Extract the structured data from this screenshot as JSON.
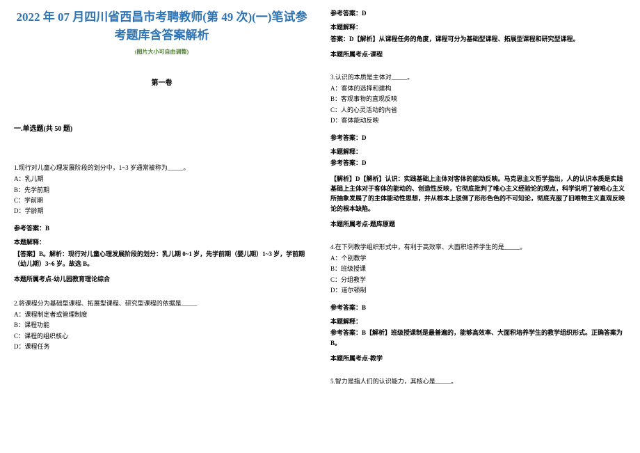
{
  "doc": {
    "title": "2022 年 07 月四川省西昌市考聘教师(第 49 次)(一)笔试参考题库含答案解析",
    "subtitle": "(图片大小可自由调整)",
    "section_label": "第一卷",
    "section_header": "一.单选题(共 50 题)"
  },
  "col_left": {
    "q1": {
      "text": "1.现行对儿童心理发展阶段的划分中，1~3 岁通常被称为_____。",
      "optA": "A：乳儿期",
      "optB": "B：先学前期",
      "optC": "C：学前期",
      "optD": "D：学龄期",
      "answer": "参考答案：B",
      "explain_label": "本题解释：",
      "explain_text": "【答案】B。解析：现行对儿童心理发展阶段的划分：乳儿期 0~1 岁，先学前期（婴儿期）1~3 岁，学前期（幼儿期）3~6 岁。故选 B。",
      "topic": "本题所属考点-幼儿园教育理论综合"
    },
    "q2": {
      "text": "2.将课程分为基础型课程、拓展型课程、研究型课程的依据是_____",
      "optA": "A：课程制定者或管理制度",
      "optB": "B：课程功能",
      "optC": "C：课程的组织核心",
      "optD": "D：课程任务"
    }
  },
  "col_right": {
    "q2_cont": {
      "answer": "参考答案：D",
      "explain_label": "本题解释：",
      "explain_text": "答案：D【解析】从课程任务的角度，课程可分为基础型课程、拓展型课程和研究型课程。",
      "topic": "本题所属考点-课程"
    },
    "q3": {
      "text": "3.认识的本质是主体对_____。",
      "optA": "A：客体的选择和建构",
      "optB": "B：客观事物的直观反映",
      "optC": "C：人的心灵活动的内省",
      "optD": "D：客体能动反映",
      "answer": "参考答案：D",
      "explain_label": "本题解释：",
      "answer_label2": "参考答案：D",
      "explain_text": "【解析】D【解析】认识：实践基础上主体对客体的能动反映。马克思主义哲学指出，人的认识本质是实践基础上主体对于客体的能动的、创造性反映，它彻底批判了唯心主义经验论的观点，科学说明了被唯心主义所抽象发展了的主体能动性思想，并从根本上驳倒了形形色色的不可知论，彻底克服了旧唯物主义直观反映论的根本缺陷。",
      "topic": "本题所属考点-题库原题"
    },
    "q4": {
      "text": "4.在下列教学组织形式中，有利于高效率、大面积培养学生的是_____。",
      "optA": "A：个别教学",
      "optB": "B：班级授课",
      "optC": "C：分组教学",
      "optD": "D：道尔顿制",
      "answer": "参考答案：B",
      "explain_label": "本题解释：",
      "explain_text": "参考答案：B【解析】班级授课制是最普遍的，能够高效率、大面积培养学生的教学组织形式。正确答案为 B。",
      "topic": "本题所属考点-教学"
    },
    "q5": {
      "text": "5.智力是指人们的认识能力，其核心是_____。"
    }
  },
  "colors": {
    "title": "#2e74b5",
    "subtitle": "#548235",
    "text": "#000000",
    "background": "#ffffff"
  }
}
